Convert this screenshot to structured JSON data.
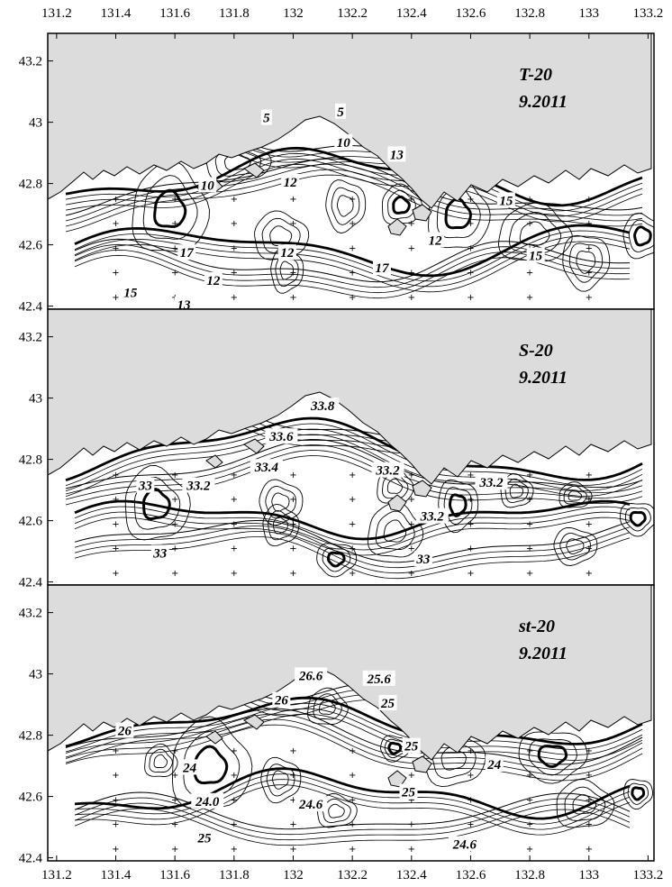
{
  "colors": {
    "land": "#dcdcdc",
    "sea": "#ffffff",
    "ink": "#000000"
  },
  "chart_data": [
    {
      "type": "contour-map",
      "title": "T-20",
      "subtitle": "9.2011",
      "xlim": [
        131.17,
        133.22
      ],
      "ylim": [
        42.39,
        43.29
      ],
      "x_ticks": [
        "131.2",
        "131.4",
        "131.6",
        "131.8",
        "132",
        "132.2",
        "132.4",
        "132.6",
        "132.8",
        "133",
        "133.2"
      ],
      "y_ticks": [
        "42.4",
        "42.6",
        "42.8",
        "43",
        "43.2"
      ],
      "contour_labels": [
        {
          "text": "5",
          "x": 131.91,
          "y": 43.0
        },
        {
          "text": "5",
          "x": 132.16,
          "y": 43.02
        },
        {
          "text": "10",
          "x": 132.17,
          "y": 42.92
        },
        {
          "text": "10",
          "x": 131.71,
          "y": 42.78
        },
        {
          "text": "13",
          "x": 132.35,
          "y": 42.88
        },
        {
          "text": "12",
          "x": 131.99,
          "y": 42.79
        },
        {
          "text": "12",
          "x": 131.98,
          "y": 42.56
        },
        {
          "text": "12",
          "x": 131.73,
          "y": 42.47
        },
        {
          "text": "12",
          "x": 132.48,
          "y": 42.6
        },
        {
          "text": "13",
          "x": 131.63,
          "y": 42.39
        },
        {
          "text": "15",
          "x": 131.45,
          "y": 42.43
        },
        {
          "text": "15",
          "x": 132.72,
          "y": 42.73
        },
        {
          "text": "15",
          "x": 132.82,
          "y": 42.55
        },
        {
          "text": "17",
          "x": 131.64,
          "y": 42.56
        },
        {
          "text": "17",
          "x": 132.3,
          "y": 42.51
        }
      ]
    },
    {
      "type": "contour-map",
      "title": "S-20",
      "subtitle": "9.2011",
      "xlim": [
        131.17,
        133.22
      ],
      "ylim": [
        42.39,
        43.29
      ],
      "x_ticks": [],
      "y_ticks": [
        "42.4",
        "42.6",
        "42.8",
        "43",
        "43.2"
      ],
      "contour_labels": [
        {
          "text": "33.8",
          "x": 132.1,
          "y": 42.96
        },
        {
          "text": "33.6",
          "x": 131.96,
          "y": 42.86
        },
        {
          "text": "33.4",
          "x": 131.91,
          "y": 42.76
        },
        {
          "text": "33.2",
          "x": 132.32,
          "y": 42.75
        },
        {
          "text": "33.2",
          "x": 131.68,
          "y": 42.7
        },
        {
          "text": "33.2",
          "x": 132.67,
          "y": 42.71
        },
        {
          "text": "33.2",
          "x": 132.47,
          "y": 42.6
        },
        {
          "text": "33",
          "x": 131.5,
          "y": 42.7
        },
        {
          "text": "33",
          "x": 131.55,
          "y": 42.48
        },
        {
          "text": "33",
          "x": 132.44,
          "y": 42.46
        }
      ]
    },
    {
      "type": "contour-map",
      "title": "st-20",
      "subtitle": "9.2011",
      "xlim": [
        131.17,
        133.22
      ],
      "ylim": [
        42.39,
        43.29
      ],
      "x_ticks": [
        "131.2",
        "131.4",
        "131.6",
        "131.8",
        "132",
        "132.2",
        "132.4",
        "132.6",
        "132.8",
        "133",
        "133.2"
      ],
      "y_ticks": [
        "42.4",
        "42.6",
        "42.8",
        "43",
        "43.2"
      ],
      "contour_labels": [
        {
          "text": "26.6",
          "x": 132.06,
          "y": 42.98
        },
        {
          "text": "25.6",
          "x": 132.29,
          "y": 42.97
        },
        {
          "text": "26",
          "x": 131.96,
          "y": 42.9
        },
        {
          "text": "25",
          "x": 132.32,
          "y": 42.89
        },
        {
          "text": "26",
          "x": 131.43,
          "y": 42.8
        },
        {
          "text": "25",
          "x": 132.4,
          "y": 42.75
        },
        {
          "text": "24",
          "x": 132.68,
          "y": 42.69
        },
        {
          "text": "24",
          "x": 131.65,
          "y": 42.68
        },
        {
          "text": "24.0",
          "x": 131.71,
          "y": 42.57
        },
        {
          "text": "25",
          "x": 132.39,
          "y": 42.6
        },
        {
          "text": "24.6",
          "x": 132.06,
          "y": 42.56
        },
        {
          "text": "25",
          "x": 131.7,
          "y": 42.45
        },
        {
          "text": "24.6",
          "x": 132.58,
          "y": 42.43
        }
      ]
    }
  ]
}
